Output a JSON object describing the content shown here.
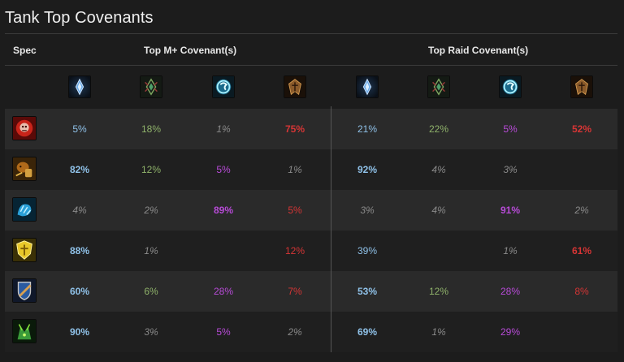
{
  "title": "Tank Top Covenants",
  "headers": {
    "spec": "Spec",
    "mplus": "Top M+ Covenant(s)",
    "raid": "Top Raid Covenant(s)"
  },
  "covenant_icons": [
    "kyrian-icon",
    "necrolord-icon",
    "night-fae-icon",
    "venthyr-icon",
    "kyrian-icon",
    "necrolord-icon",
    "night-fae-icon",
    "venthyr-icon"
  ],
  "colors": {
    "kyrian": "#8fc1e8",
    "necrolord": "#8fb26a",
    "night_fae": "#b84bd8",
    "venthyr": "#d63535",
    "dim": "#8a8a8a"
  },
  "rows": [
    {
      "spec_icon": "blood-death-knight-icon",
      "values": [
        {
          "text": "5%",
          "covenant": "kyrian",
          "style": "normal"
        },
        {
          "text": "18%",
          "covenant": "necrolord",
          "style": "normal"
        },
        {
          "text": "1%",
          "covenant": "night_fae",
          "style": "dim"
        },
        {
          "text": "75%",
          "covenant": "venthyr",
          "style": "top"
        },
        {
          "text": "21%",
          "covenant": "kyrian",
          "style": "normal"
        },
        {
          "text": "22%",
          "covenant": "necrolord",
          "style": "normal"
        },
        {
          "text": "5%",
          "covenant": "night_fae",
          "style": "normal"
        },
        {
          "text": "52%",
          "covenant": "venthyr",
          "style": "top"
        }
      ]
    },
    {
      "spec_icon": "brewmaster-monk-icon",
      "values": [
        {
          "text": "82%",
          "covenant": "kyrian",
          "style": "top"
        },
        {
          "text": "12%",
          "covenant": "necrolord",
          "style": "normal"
        },
        {
          "text": "5%",
          "covenant": "night_fae",
          "style": "normal"
        },
        {
          "text": "1%",
          "covenant": "venthyr",
          "style": "dim"
        },
        {
          "text": "92%",
          "covenant": "kyrian",
          "style": "top"
        },
        {
          "text": "4%",
          "covenant": "necrolord",
          "style": "dim"
        },
        {
          "text": "3%",
          "covenant": "night_fae",
          "style": "dim"
        },
        {
          "text": "",
          "covenant": "venthyr",
          "style": "dim"
        }
      ]
    },
    {
      "spec_icon": "guardian-druid-icon",
      "values": [
        {
          "text": "4%",
          "covenant": "kyrian",
          "style": "dim"
        },
        {
          "text": "2%",
          "covenant": "necrolord",
          "style": "dim"
        },
        {
          "text": "89%",
          "covenant": "night_fae",
          "style": "top"
        },
        {
          "text": "5%",
          "covenant": "venthyr",
          "style": "normal"
        },
        {
          "text": "3%",
          "covenant": "kyrian",
          "style": "dim"
        },
        {
          "text": "4%",
          "covenant": "necrolord",
          "style": "dim"
        },
        {
          "text": "91%",
          "covenant": "night_fae",
          "style": "top"
        },
        {
          "text": "2%",
          "covenant": "venthyr",
          "style": "dim"
        }
      ]
    },
    {
      "spec_icon": "protection-paladin-icon",
      "values": [
        {
          "text": "88%",
          "covenant": "kyrian",
          "style": "top"
        },
        {
          "text": "1%",
          "covenant": "necrolord",
          "style": "dim"
        },
        {
          "text": "",
          "covenant": "night_fae",
          "style": "dim"
        },
        {
          "text": "12%",
          "covenant": "venthyr",
          "style": "normal"
        },
        {
          "text": "39%",
          "covenant": "kyrian",
          "style": "normal"
        },
        {
          "text": "",
          "covenant": "necrolord",
          "style": "dim"
        },
        {
          "text": "1%",
          "covenant": "night_fae",
          "style": "dim"
        },
        {
          "text": "61%",
          "covenant": "venthyr",
          "style": "top"
        }
      ]
    },
    {
      "spec_icon": "protection-warrior-icon",
      "values": [
        {
          "text": "60%",
          "covenant": "kyrian",
          "style": "top"
        },
        {
          "text": "6%",
          "covenant": "necrolord",
          "style": "normal"
        },
        {
          "text": "28%",
          "covenant": "night_fae",
          "style": "normal"
        },
        {
          "text": "7%",
          "covenant": "venthyr",
          "style": "normal"
        },
        {
          "text": "53%",
          "covenant": "kyrian",
          "style": "top"
        },
        {
          "text": "12%",
          "covenant": "necrolord",
          "style": "normal"
        },
        {
          "text": "28%",
          "covenant": "night_fae",
          "style": "normal"
        },
        {
          "text": "8%",
          "covenant": "venthyr",
          "style": "normal"
        }
      ]
    },
    {
      "spec_icon": "vengeance-demon-hunter-icon",
      "values": [
        {
          "text": "90%",
          "covenant": "kyrian",
          "style": "top"
        },
        {
          "text": "3%",
          "covenant": "necrolord",
          "style": "dim"
        },
        {
          "text": "5%",
          "covenant": "night_fae",
          "style": "normal"
        },
        {
          "text": "2%",
          "covenant": "venthyr",
          "style": "dim"
        },
        {
          "text": "69%",
          "covenant": "kyrian",
          "style": "top"
        },
        {
          "text": "1%",
          "covenant": "necrolord",
          "style": "dim"
        },
        {
          "text": "29%",
          "covenant": "night_fae",
          "style": "normal"
        },
        {
          "text": "",
          "covenant": "venthyr",
          "style": "dim"
        }
      ]
    }
  ]
}
